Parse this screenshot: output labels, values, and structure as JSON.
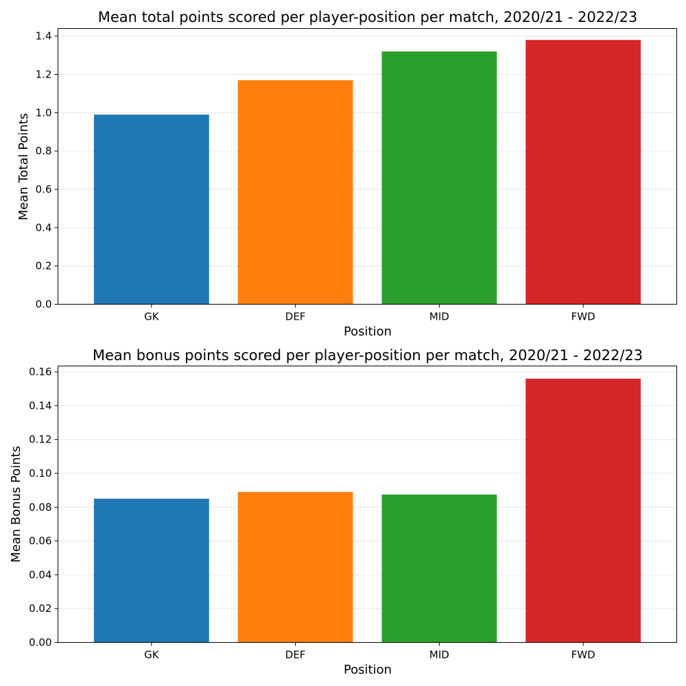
{
  "chart_data": [
    {
      "type": "bar",
      "title": "Mean total points scored per player-position per match, 2020/21 - 2022/23",
      "xlabel": "Position",
      "ylabel": "Mean Total Points",
      "categories": [
        "GK",
        "DEF",
        "MID",
        "FWD"
      ],
      "values": [
        0.99,
        1.17,
        1.32,
        1.38
      ],
      "colors": [
        "#1f77b4",
        "#ff7f0e",
        "#2ca02c",
        "#d62728"
      ],
      "ylim": [
        0,
        1.44
      ],
      "yticks": [
        0.0,
        0.2,
        0.4,
        0.6,
        0.8,
        1.0,
        1.2,
        1.4
      ],
      "ytick_labels": [
        "0.0",
        "0.2",
        "0.4",
        "0.6",
        "0.8",
        "1.0",
        "1.2",
        "1.4"
      ],
      "grid": "y",
      "legend": "none"
    },
    {
      "type": "bar",
      "title": "Mean bonus points scored per player-position per match, 2020/21 - 2022/23",
      "xlabel": "Position",
      "ylabel": "Mean Bonus Points",
      "categories": [
        "GK",
        "DEF",
        "MID",
        "FWD"
      ],
      "values": [
        0.085,
        0.089,
        0.0875,
        0.156
      ],
      "colors": [
        "#1f77b4",
        "#ff7f0e",
        "#2ca02c",
        "#d62728"
      ],
      "ylim": [
        0,
        0.1635
      ],
      "yticks": [
        0.0,
        0.02,
        0.04,
        0.06,
        0.08,
        0.1,
        0.12,
        0.14,
        0.16
      ],
      "ytick_labels": [
        "0.00",
        "0.02",
        "0.04",
        "0.06",
        "0.08",
        "0.10",
        "0.12",
        "0.14",
        "0.16"
      ],
      "grid": "y",
      "legend": "none"
    }
  ]
}
